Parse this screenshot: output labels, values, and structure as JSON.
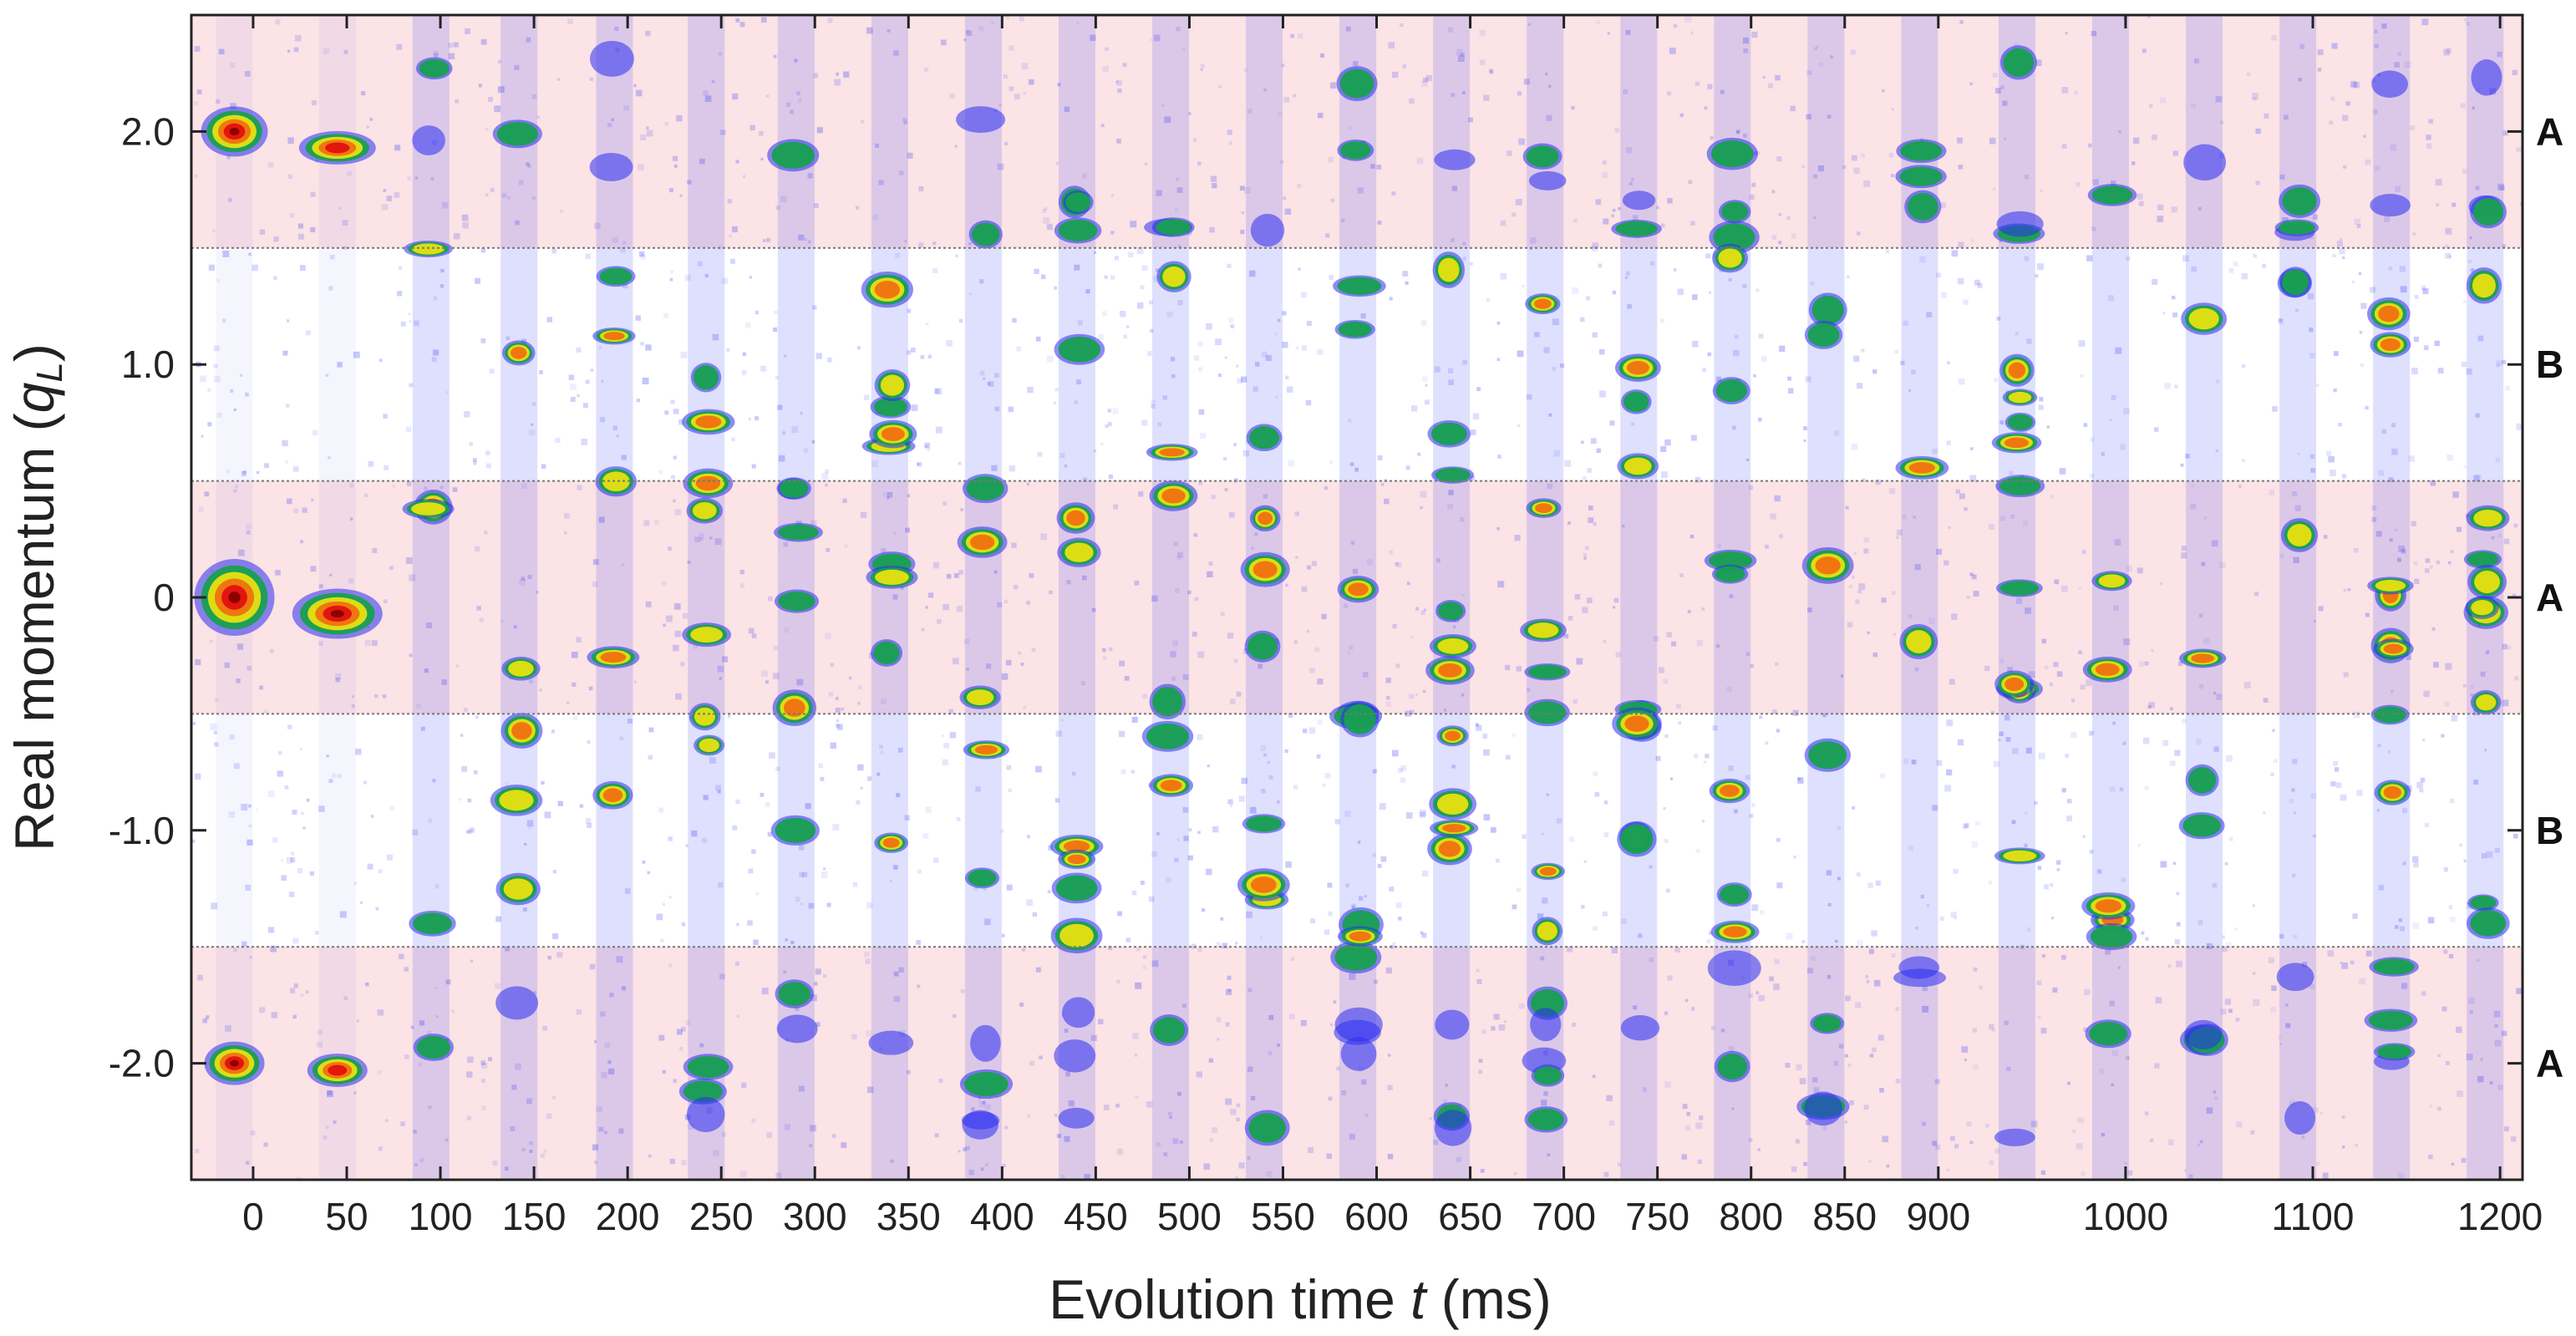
{
  "chart_data": {
    "type": "heatmap",
    "title": "",
    "xlabel": {
      "prefix": "Evolution time ",
      "var": "t",
      "suffix": " (ms)"
    },
    "ylabel": {
      "prefix": "Real momentum (",
      "var": "q",
      "sub": "L",
      "suffix": ")"
    },
    "xlim": [
      -33,
      1212
    ],
    "ylim": [
      -2.5,
      2.5
    ],
    "x_ticks": [
      {
        "value": 0,
        "label": "0"
      },
      {
        "value": 50,
        "label": "50"
      },
      {
        "value": 100,
        "label": "100"
      },
      {
        "value": 150,
        "label": "150"
      },
      {
        "value": 200,
        "label": "200"
      },
      {
        "value": 250,
        "label": "250"
      },
      {
        "value": 300,
        "label": "300"
      },
      {
        "value": 350,
        "label": "350"
      },
      {
        "value": 400,
        "label": "400"
      },
      {
        "value": 450,
        "label": "450"
      },
      {
        "value": 500,
        "label": "500"
      },
      {
        "value": 550,
        "label": "550"
      },
      {
        "value": 600,
        "label": "600"
      },
      {
        "value": 650,
        "label": "650"
      },
      {
        "value": 700,
        "label": "700"
      },
      {
        "value": 750,
        "label": "750"
      },
      {
        "value": 800,
        "label": "800"
      },
      {
        "value": 850,
        "label": "850"
      },
      {
        "value": 900,
        "label": "900"
      },
      {
        "value": 1000,
        "label": "1000"
      },
      {
        "value": 1100,
        "label": "1100"
      },
      {
        "value": 1200,
        "label": "1200"
      }
    ],
    "y_ticks": [
      {
        "value": 2.0,
        "label": "2.0"
      },
      {
        "value": 1.0,
        "label": "1.0"
      },
      {
        "value": 0,
        "label": "0"
      },
      {
        "value": -1.0,
        "label": "-1.0"
      },
      {
        "value": -2.0,
        "label": "-2.0"
      }
    ],
    "region_boundaries": [
      1.5,
      0.5,
      -0.5,
      -1.5
    ],
    "regions": [
      {
        "label": "A",
        "y_center": 2.0,
        "y_range": [
          1.5,
          2.5
        ]
      },
      {
        "label": "B",
        "y_center": 1.0,
        "y_range": [
          0.5,
          1.5
        ]
      },
      {
        "label": "A",
        "y_center": 0,
        "y_range": [
          -0.5,
          0.5
        ]
      },
      {
        "label": "B",
        "y_center": -1.0,
        "y_range": [
          -1.5,
          -0.5
        ]
      },
      {
        "label": "A",
        "y_center": -2.0,
        "y_range": [
          -2.5,
          -1.5
        ]
      }
    ],
    "columns_ms": [
      -10,
      45,
      95,
      142,
      193,
      242,
      290,
      340,
      390,
      440,
      490,
      540,
      590,
      640,
      690,
      740,
      790,
      840,
      890,
      942,
      992,
      1042,
      1092,
      1142,
      1192
    ],
    "colors": {
      "region_A": "#fbe3e6",
      "region_B": "#ffffff",
      "noise": "#3a3ff0",
      "colormap": [
        "#2b2df0",
        "#18a050",
        "#e8e010",
        "#f07010",
        "#e01010",
        "#8a0000"
      ],
      "boundary": "#777777"
    }
  }
}
